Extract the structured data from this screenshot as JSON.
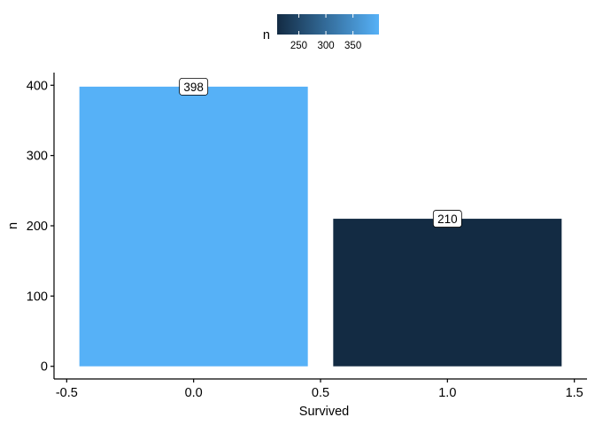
{
  "chart_data": {
    "type": "bar",
    "x": [
      0,
      1
    ],
    "values": [
      398,
      210
    ],
    "data_labels": [
      "398",
      "210"
    ],
    "bar_width": 0.9,
    "xlabel": "Survived",
    "ylabel": "n",
    "xlim": [
      -0.55,
      1.55
    ],
    "ylim": [
      -18,
      418
    ],
    "x_ticks": [
      -0.5,
      0.0,
      0.5,
      1.0,
      1.5
    ],
    "x_tick_labels": [
      "-0.5",
      "0.0",
      "0.5",
      "1.0",
      "1.5"
    ],
    "y_ticks": [
      0,
      100,
      200,
      300,
      400
    ],
    "y_tick_labels": [
      "0",
      "100",
      "200",
      "300",
      "400"
    ],
    "grid": false,
    "legend": {
      "placement": "top",
      "title": "n",
      "type": "colorbar",
      "range": [
        210,
        398
      ],
      "low_color": "#132B43",
      "high_color": "#56B1F7",
      "ticks": [
        250,
        300,
        350
      ],
      "tick_labels": [
        "250",
        "300",
        "350"
      ]
    }
  }
}
